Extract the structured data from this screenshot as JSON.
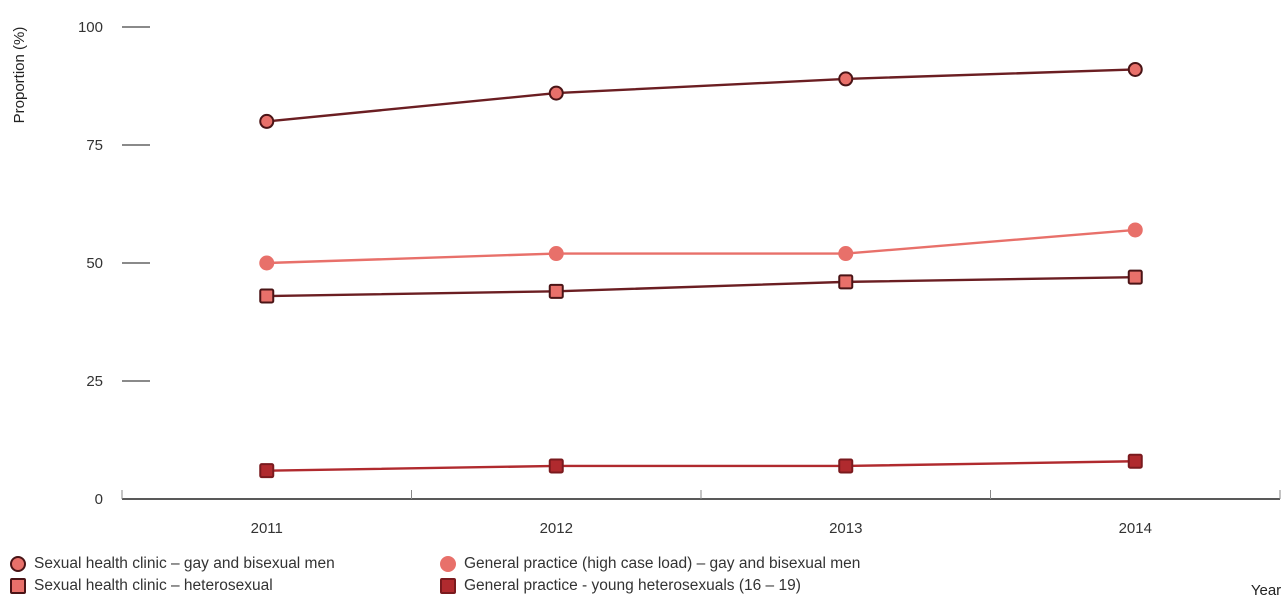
{
  "chart_data": {
    "type": "line",
    "title": "",
    "xlabel": "Year",
    "ylabel": "Proportion (%)",
    "categories": [
      "2011",
      "2012",
      "2013",
      "2014"
    ],
    "ylim": [
      0,
      100
    ],
    "yticks": [
      "0",
      "25",
      "50",
      "75",
      "100"
    ],
    "grid": false,
    "legend_position": "bottom",
    "series": [
      {
        "name": "Sexual health clinic – gay and bisexual men",
        "values": [
          80,
          86,
          89,
          91
        ],
        "line_color": "#6b1e22",
        "marker": "circle",
        "marker_fill": "#e8706a",
        "marker_stroke": "#4a1416"
      },
      {
        "name": "General practice (high case load) – gay and bisexual men",
        "values": [
          50,
          52,
          52,
          57
        ],
        "line_color": "#e8706a",
        "marker": "circle",
        "marker_fill": "#e8706a",
        "marker_stroke": "#e8706a"
      },
      {
        "name": "Sexual health clinic – heterosexual",
        "values": [
          43,
          44,
          46,
          47
        ],
        "line_color": "#6b1e22",
        "marker": "square",
        "marker_fill": "#e8706a",
        "marker_stroke": "#4a1416"
      },
      {
        "name": "General practice - young heterosexuals (16 – 19)",
        "values": [
          6,
          7,
          7,
          8
        ],
        "line_color": "#b02a2e",
        "marker": "square",
        "marker_fill": "#b02a2e",
        "marker_stroke": "#7a1a1e"
      }
    ]
  }
}
